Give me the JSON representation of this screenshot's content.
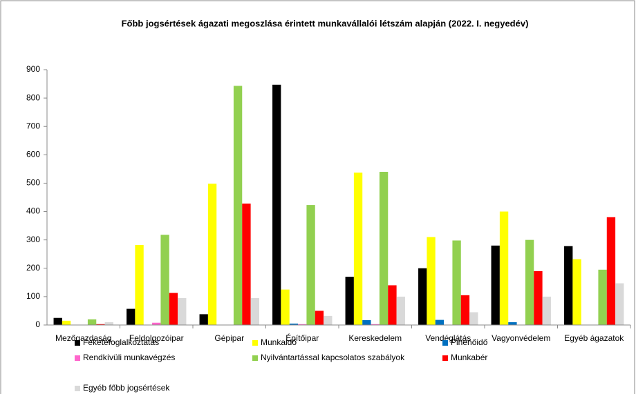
{
  "chart_data": {
    "type": "bar",
    "title": "Főbb jogsértések ágazati megoszlása érintett munkavállalói létszám alapján (2022. I. negyedév)",
    "categories": [
      "Mezőgazdaság",
      "Feldolgozóipar",
      "Gépipar",
      "Építőipar",
      "Kereskedelem",
      "Vendéglátás",
      "Vagyonvédelem",
      "Egyéb ágazatok"
    ],
    "series": [
      {
        "name": "Feketefoglalkoztatás",
        "color": "#000000",
        "values": [
          25,
          57,
          38,
          847,
          170,
          200,
          280,
          278
        ]
      },
      {
        "name": "Munkaidő",
        "color": "#ffff00",
        "values": [
          15,
          282,
          498,
          125,
          537,
          310,
          400,
          232
        ]
      },
      {
        "name": "Pihenőidő",
        "color": "#0070c0",
        "values": [
          0,
          0,
          0,
          5,
          17,
          18,
          10,
          0
        ]
      },
      {
        "name": "Rendkívüli munkavégzés",
        "color": "#ff66cc",
        "values": [
          0,
          8,
          0,
          3,
          3,
          0,
          0,
          0
        ]
      },
      {
        "name": "Nyilvántartással kapcsolatos szabályok",
        "color": "#92d050",
        "values": [
          20,
          318,
          843,
          423,
          540,
          298,
          300,
          195
        ]
      },
      {
        "name": "Munkabér",
        "color": "#ff0000",
        "values": [
          3,
          113,
          428,
          50,
          140,
          105,
          190,
          380
        ]
      },
      {
        "name": "Egyéb főbb jogsértések",
        "color": "#d9d9d9",
        "values": [
          10,
          95,
          95,
          32,
          100,
          45,
          100,
          147
        ]
      }
    ],
    "ylim": [
      0,
      900
    ],
    "yticks": [
      0,
      100,
      200,
      300,
      400,
      500,
      600,
      700,
      800,
      900
    ],
    "grid": false
  }
}
